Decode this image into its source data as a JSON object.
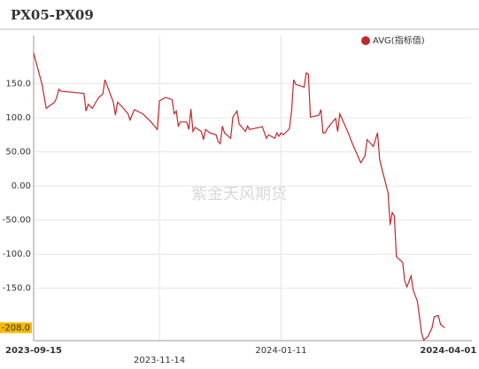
{
  "chart_data": {
    "type": "line",
    "title": "PX05-PX09",
    "watermark": "紫金天风期货",
    "x": [
      "2023-09-15",
      "2023-09-19",
      "2023-09-21",
      "2023-09-25",
      "2023-09-26",
      "2023-09-27",
      "2023-09-28",
      "2023-10-09",
      "2023-10-10",
      "2023-10-11",
      "2023-10-13",
      "2023-10-16",
      "2023-10-18",
      "2023-10-19",
      "2023-10-23",
      "2023-10-24",
      "2023-10-25",
      "2023-10-27",
      "2023-10-30",
      "2023-10-31",
      "2023-11-02",
      "2023-11-06",
      "2023-11-08",
      "2023-11-10",
      "2023-11-13",
      "2023-11-14",
      "2023-11-17",
      "2023-11-20",
      "2023-11-21",
      "2023-11-22",
      "2023-11-23",
      "2023-11-24",
      "2023-11-27",
      "2023-11-28",
      "2023-11-29",
      "2023-11-30",
      "2023-12-01",
      "2023-12-04",
      "2023-12-05",
      "2023-12-06",
      "2023-12-08",
      "2023-12-11",
      "2023-12-12",
      "2023-12-13",
      "2023-12-14",
      "2023-12-15",
      "2023-12-18",
      "2023-12-19",
      "2023-12-21",
      "2023-12-22",
      "2023-12-25",
      "2023-12-26",
      "2023-12-27",
      "2024-01-02",
      "2024-01-04",
      "2024-01-05",
      "2024-01-08",
      "2024-01-09",
      "2024-01-10",
      "2024-01-11",
      "2024-01-12",
      "2024-01-15",
      "2024-01-16",
      "2024-01-17",
      "2024-01-18",
      "2024-01-22",
      "2024-01-23",
      "2024-01-24",
      "2024-01-25",
      "2024-01-29",
      "2024-01-30",
      "2024-01-31",
      "2024-02-01",
      "2024-02-02",
      "2024-02-05",
      "2024-02-06",
      "2024-02-07",
      "2024-02-08",
      "2024-02-12",
      "2024-02-14",
      "2024-02-18",
      "2024-02-20",
      "2024-02-21",
      "2024-02-22",
      "2024-02-24",
      "2024-02-26",
      "2024-02-27",
      "2024-02-28",
      "2024-03-02",
      "2024-03-03",
      "2024-03-04",
      "2024-03-05",
      "2024-03-06",
      "2024-03-09",
      "2024-03-10",
      "2024-03-11",
      "2024-03-13",
      "2024-03-14",
      "2024-03-16",
      "2024-03-18",
      "2024-03-19",
      "2024-03-21",
      "2024-03-23",
      "2024-03-24",
      "2024-03-26",
      "2024-03-27",
      "2024-03-29"
    ],
    "series": [
      {
        "name": "AVG(指标值)",
        "color": "#c0282d",
        "values": [
          195,
          149,
          114,
          123,
          130,
          142,
          139,
          136,
          110,
          120,
          114,
          130,
          135,
          156,
          123,
          104,
          123,
          117,
          106,
          97,
          112,
          106,
          100,
          94,
          83,
          125,
          130,
          127,
          106,
          110,
          88,
          94,
          94,
          83,
          113,
          80,
          86,
          80,
          68,
          83,
          78,
          75,
          65,
          62,
          88,
          78,
          70,
          101,
          110,
          91,
          80,
          88,
          83,
          87,
          70,
          75,
          70,
          78,
          73,
          78,
          75,
          84,
          110,
          156,
          149,
          145,
          166,
          164,
          101,
          104,
          112,
          78,
          78,
          84,
          96,
          99,
          80,
          106,
          78,
          62,
          34,
          44,
          68,
          65,
          58,
          78,
          39,
          26,
          -10,
          -57,
          -39,
          -44,
          -104,
          -112,
          -140,
          -148,
          -132,
          -153,
          -169,
          -216,
          -226,
          -221,
          -208,
          -192,
          -190,
          -203,
          -208
        ]
      }
    ],
    "current_value": {
      "value": -208,
      "label": "-208.0"
    },
    "xlim": [
      "2023-09-15",
      "2024-04-11"
    ],
    "xticks": [
      "2023-09-15",
      "2023-11-14",
      "2024-01-11",
      "2024-04-01"
    ],
    "ylim": [
      -227,
      221
    ],
    "yticks": [
      {
        "value": -150,
        "label": "-150.0"
      },
      {
        "value": -100,
        "label": "-100.0"
      },
      {
        "value": -50,
        "label": "-50.00"
      },
      {
        "value": 0,
        "label": "0.00"
      },
      {
        "value": 50,
        "label": "50.00"
      },
      {
        "value": 100,
        "label": "100.0"
      },
      {
        "value": 150,
        "label": "150.0"
      }
    ],
    "grid": true
  }
}
